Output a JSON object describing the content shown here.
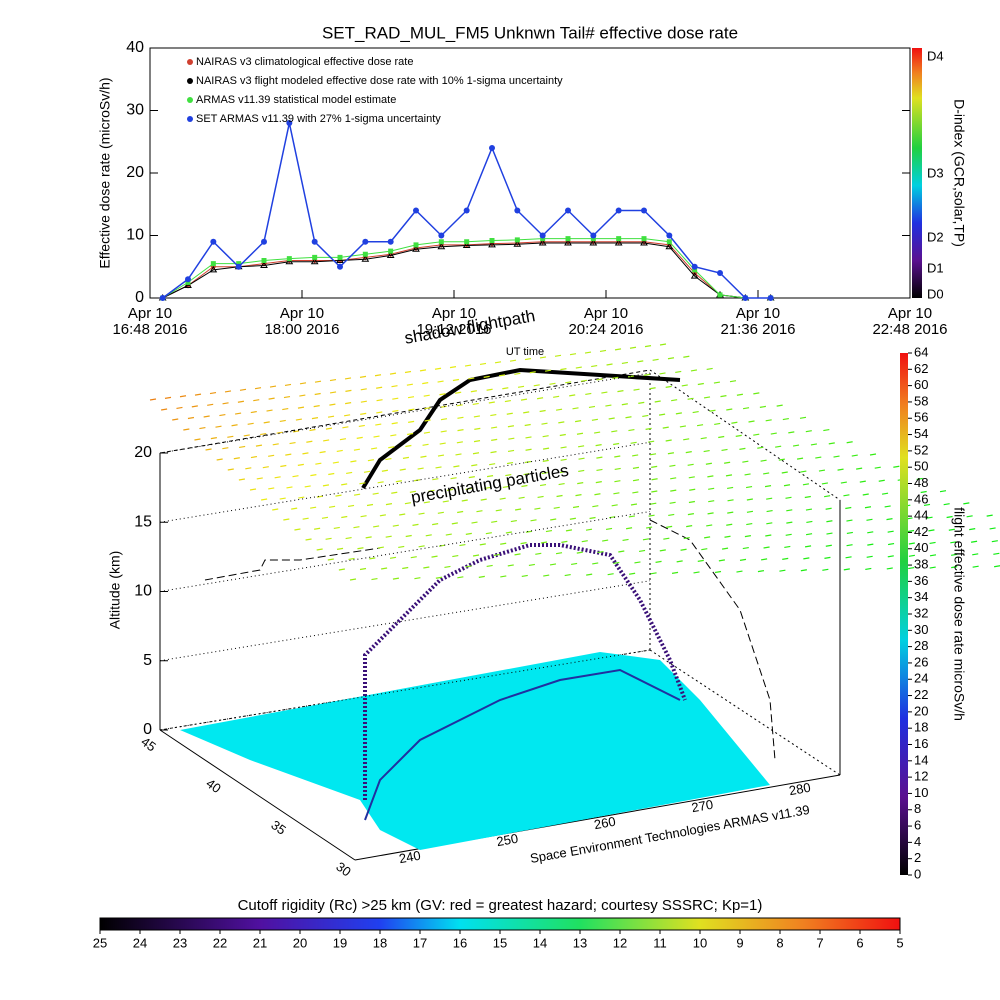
{
  "chart_data": [
    {
      "type": "line",
      "title": "SET_RAD_MUL_FM5 Unknwn Tail#  effective dose rate",
      "ylabel": "Effective dose rate (microSv/h)",
      "x": [
        "16:54",
        "17:06",
        "17:18",
        "17:30",
        "17:42",
        "17:54",
        "18:06",
        "18:18",
        "18:30",
        "18:42",
        "18:54",
        "19:06",
        "19:18",
        "19:30",
        "19:42",
        "19:54",
        "20:06",
        "20:18",
        "20:30",
        "20:42",
        "20:54",
        "21:06",
        "21:18",
        "21:30",
        "21:42"
      ],
      "xlim": [
        "16:48",
        "22:48"
      ],
      "xticks": [
        {
          "value": "16:48",
          "label": "Apr 10\n16:48 2016"
        },
        {
          "value": "18:00",
          "label": "Apr 10\n18:00 2016"
        },
        {
          "value": "19:12",
          "label": "Apr 10\n19:12 2016"
        },
        {
          "value": "20:24",
          "label": "Apr 10\n20:24 2016"
        },
        {
          "value": "21:36",
          "label": "Apr 10\n21:36 2016"
        },
        {
          "value": "22:48",
          "label": "Apr 10\n22:48 2016"
        }
      ],
      "ylim": [
        0,
        40
      ],
      "yticks": [
        0,
        10,
        20,
        30,
        40
      ],
      "series": [
        {
          "name": "NAIRAS v3 climatological effective dose rate",
          "color": "#d04030",
          "marker": "diamond",
          "values": [
            0,
            2,
            5,
            5,
            5.5,
            6,
            6,
            6,
            6.5,
            7,
            8,
            8.5,
            8.5,
            8.7,
            8.8,
            9,
            9,
            9,
            9,
            9,
            8.5,
            4,
            0.5,
            0,
            0
          ]
        },
        {
          "name": "NAIRAS v3 flight modeled effective dose rate with 10% 1-sigma uncertainty",
          "color": "#000000",
          "marker": "triangle",
          "values": [
            0,
            2,
            4.5,
            5,
            5.2,
            5.8,
            5.8,
            6,
            6.2,
            6.8,
            7.8,
            8.2,
            8.4,
            8.5,
            8.6,
            8.8,
            8.8,
            8.8,
            8.8,
            8.8,
            8.2,
            3.5,
            0.5,
            0,
            0
          ]
        },
        {
          "name": "ARMAS v11.39 statistical model estimate",
          "color": "#40e040",
          "marker": "star",
          "values": [
            0,
            2.5,
            5.5,
            5.5,
            6,
            6.3,
            6.5,
            6.5,
            7,
            7.5,
            8.5,
            9,
            9,
            9.2,
            9.3,
            9.5,
            9.5,
            9.5,
            9.5,
            9.5,
            9,
            4.5,
            0.5,
            0,
            0
          ]
        },
        {
          "name": "SET ARMAS v11.39 with 27% 1-sigma uncertainty",
          "color": "#2040e0",
          "marker": "circle",
          "values": [
            0,
            3,
            9,
            5,
            9,
            28,
            9,
            5,
            9,
            9,
            14,
            10,
            14,
            24,
            14,
            10,
            14,
            10,
            14,
            14,
            10,
            5,
            4,
            0,
            0
          ]
        }
      ],
      "colorbar": {
        "label": "D-index (GCR,solar,TP)",
        "ticks": [
          "D4",
          "D3",
          "D2",
          "D1",
          "D0"
        ]
      }
    },
    {
      "type": "3d",
      "annotations": [
        "shadow flightpath",
        "UT time",
        "precipitating particles"
      ],
      "zlabel": "Altitude (km)",
      "zlim": [
        0,
        20
      ],
      "zticks": [
        0,
        5,
        10,
        15,
        20
      ],
      "ylim": [
        30,
        45
      ],
      "yticks": [
        45,
        40,
        35,
        30
      ],
      "xlim": [
        240,
        280
      ],
      "xticks": [
        240,
        250,
        260,
        270,
        280
      ],
      "credit": "Space Environment Technologies ARMAS v11.39",
      "colorbar": {
        "label": "flight effective dose rate microSv/h",
        "lim": [
          0,
          64
        ],
        "ticks": [
          0,
          2,
          4,
          6,
          8,
          10,
          12,
          14,
          16,
          18,
          20,
          22,
          24,
          26,
          28,
          30,
          32,
          34,
          36,
          38,
          40,
          42,
          44,
          46,
          48,
          50,
          52,
          54,
          56,
          58,
          60,
          62,
          64
        ]
      }
    },
    {
      "type": "colorbar",
      "title": "Cutoff rigidity (Rc) >25 km (GV: red = greatest hazard; courtesy SSSRC; Kp=1)",
      "xlim": [
        25,
        5
      ],
      "xticks": [
        25,
        24,
        23,
        22,
        21,
        20,
        19,
        18,
        17,
        16,
        15,
        14,
        13,
        12,
        11,
        10,
        9,
        8,
        7,
        6,
        5
      ]
    }
  ]
}
